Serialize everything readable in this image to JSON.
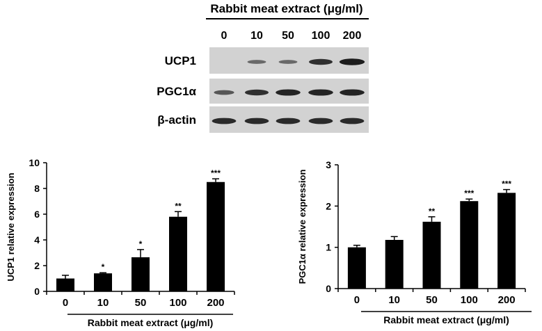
{
  "western_blot": {
    "title": "Rabbit meat extract (μg/ml)",
    "concentrations": [
      "0",
      "10",
      "50",
      "100",
      "200"
    ],
    "proteins": [
      "UCP1",
      "PGC1α",
      "β-actin"
    ],
    "band_intensity": {
      "UCP1": [
        0.0,
        0.3,
        0.3,
        0.75,
        0.9
      ],
      "PGC1α": [
        0.45,
        0.75,
        0.85,
        0.85,
        0.85
      ],
      "β-actin": [
        0.8,
        0.8,
        0.8,
        0.8,
        0.8
      ]
    }
  },
  "chart_data": [
    {
      "type": "bar",
      "categories": [
        "0",
        "10",
        "50",
        "100",
        "200"
      ],
      "values": [
        1.0,
        1.4,
        2.65,
        5.8,
        8.5
      ],
      "errors": [
        0.25,
        0.05,
        0.6,
        0.4,
        0.25
      ],
      "significance": [
        "",
        "*",
        "*",
        "**",
        "***"
      ],
      "title": "",
      "xlabel": "Rabbit meat extract (μg/ml)",
      "ylabel": "UCP1 relative expression",
      "ylim": [
        0,
        10
      ],
      "yticks": [
        0,
        2,
        4,
        6,
        8,
        10
      ],
      "grid": false
    },
    {
      "type": "bar",
      "categories": [
        "0",
        "10",
        "50",
        "100",
        "200"
      ],
      "values": [
        1.0,
        1.18,
        1.62,
        2.12,
        2.32
      ],
      "errors": [
        0.05,
        0.08,
        0.12,
        0.05,
        0.08
      ],
      "significance": [
        "",
        "",
        "**",
        "***",
        "***"
      ],
      "title": "",
      "xlabel": "Rabbit meat extract (μg/ml)",
      "ylabel": "PGC1α relative expression",
      "ylim": [
        0,
        3
      ],
      "yticks": [
        0,
        1,
        2,
        3
      ],
      "grid": false
    }
  ]
}
